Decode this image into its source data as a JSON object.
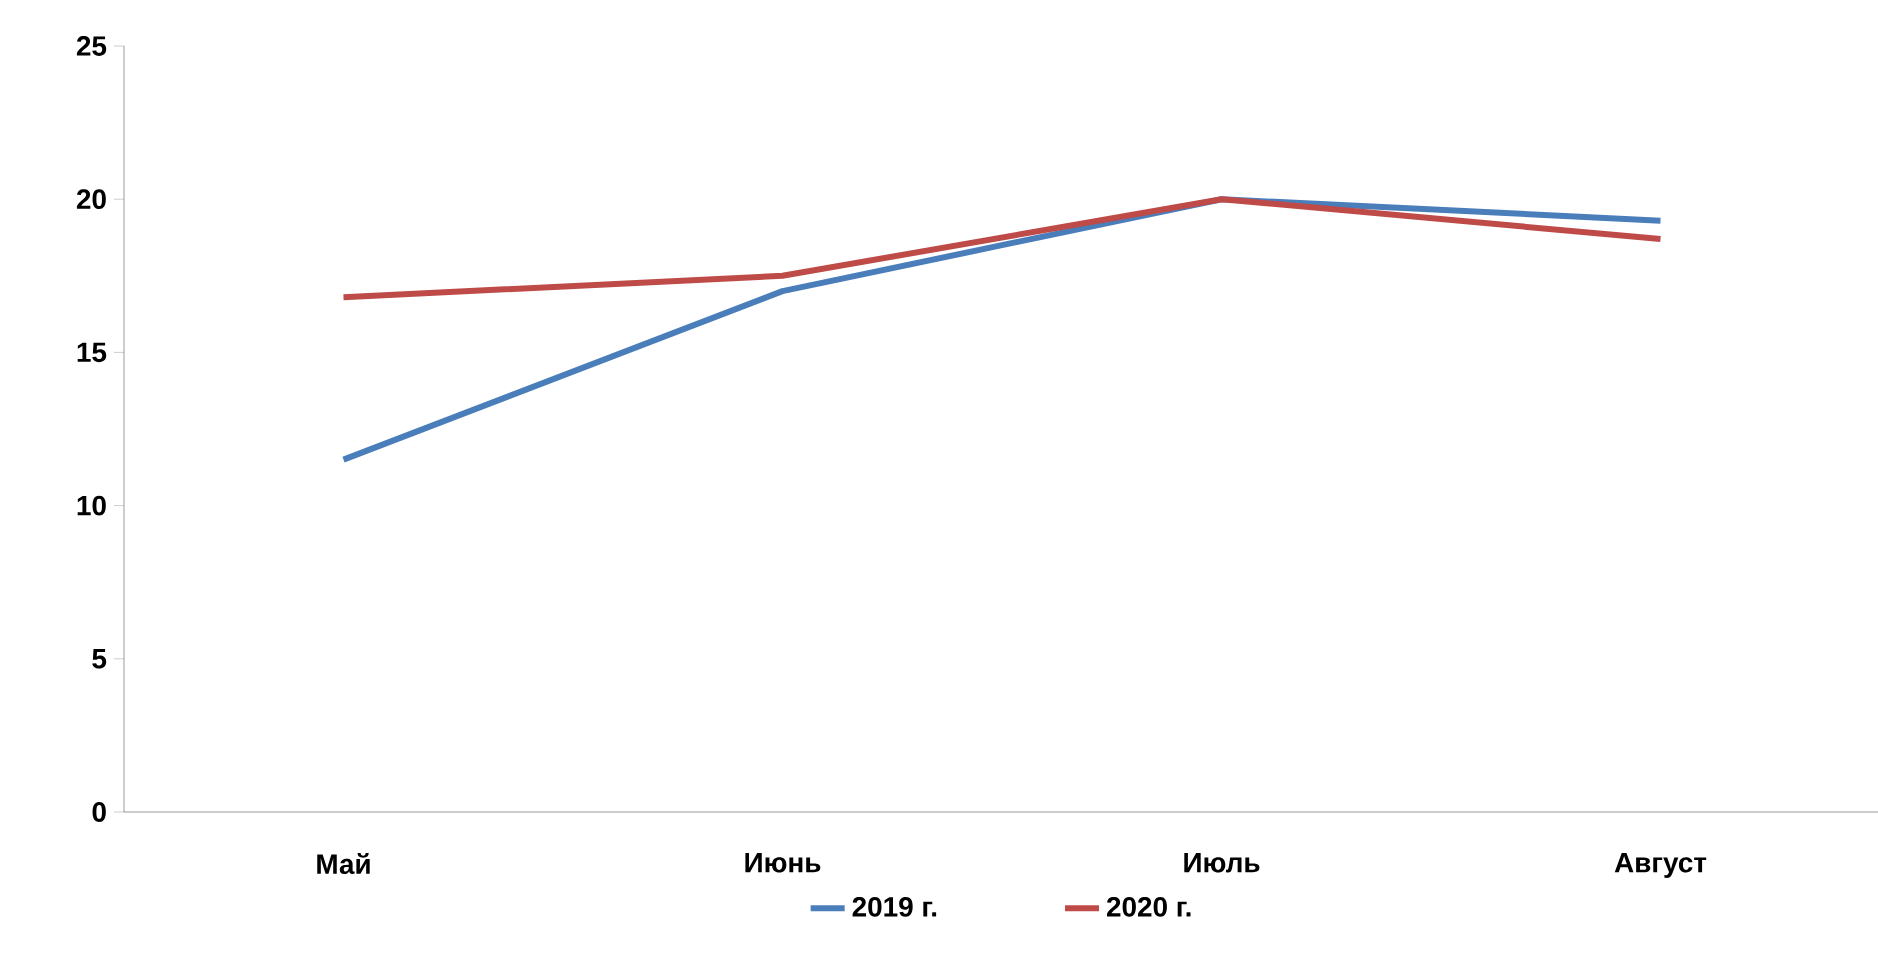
{
  "chart_data": {
    "type": "line",
    "categories": [
      "Май",
      "Июнь",
      "Июль",
      "Август"
    ],
    "series": [
      {
        "name": "2019 г.",
        "color": "#4a7ebb",
        "values": [
          11.5,
          17.0,
          20.0,
          19.3
        ]
      },
      {
        "name": "2020 г.",
        "color": "#be4b48",
        "values": [
          16.8,
          17.5,
          20.0,
          18.7
        ]
      }
    ],
    "ylim": [
      0,
      25
    ],
    "yticks": [
      0,
      5,
      10,
      15,
      20,
      25
    ],
    "grid": false,
    "legend": "bottom",
    "marker": "none",
    "line_style": "solid"
  }
}
